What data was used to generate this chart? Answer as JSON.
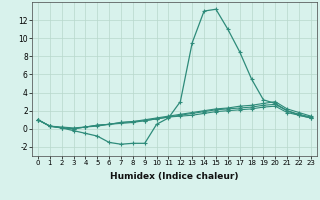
{
  "xlabel": "Humidex (Indice chaleur)",
  "x": [
    0,
    1,
    2,
    3,
    4,
    5,
    6,
    7,
    8,
    9,
    10,
    11,
    12,
    13,
    14,
    15,
    16,
    17,
    18,
    19,
    20,
    21,
    22,
    23
  ],
  "line1": [
    1.0,
    0.3,
    0.1,
    -0.2,
    -0.5,
    -0.8,
    -1.5,
    -1.7,
    -1.6,
    -1.6,
    0.5,
    1.2,
    3.0,
    9.5,
    13.0,
    13.2,
    11.0,
    8.5,
    5.5,
    3.2,
    2.8,
    2.0,
    1.5,
    1.2
  ],
  "line2": [
    1.0,
    0.3,
    0.2,
    0.1,
    0.2,
    0.4,
    0.5,
    0.7,
    0.8,
    1.0,
    1.2,
    1.4,
    1.6,
    1.8,
    2.0,
    2.2,
    2.3,
    2.5,
    2.6,
    2.8,
    3.0,
    2.2,
    1.8,
    1.4
  ],
  "line3": [
    1.0,
    0.3,
    0.1,
    0.0,
    0.2,
    0.4,
    0.5,
    0.7,
    0.8,
    0.9,
    1.1,
    1.3,
    1.5,
    1.7,
    1.9,
    2.1,
    2.2,
    2.3,
    2.4,
    2.6,
    2.7,
    2.0,
    1.6,
    1.3
  ],
  "line4": [
    1.0,
    0.3,
    0.1,
    0.0,
    0.2,
    0.3,
    0.5,
    0.6,
    0.7,
    0.9,
    1.1,
    1.3,
    1.4,
    1.5,
    1.7,
    1.9,
    2.0,
    2.1,
    2.2,
    2.4,
    2.5,
    1.8,
    1.5,
    1.2
  ],
  "line_color": "#2E8B7A",
  "bg_color": "#D8F2EC",
  "grid_color": "#B8D8CC",
  "ylim": [
    -3,
    14
  ],
  "yticks": [
    -2,
    0,
    2,
    4,
    6,
    8,
    10,
    12
  ],
  "xticks": [
    0,
    1,
    2,
    3,
    4,
    5,
    6,
    7,
    8,
    9,
    10,
    11,
    12,
    13,
    14,
    15,
    16,
    17,
    18,
    19,
    20,
    21,
    22,
    23
  ]
}
